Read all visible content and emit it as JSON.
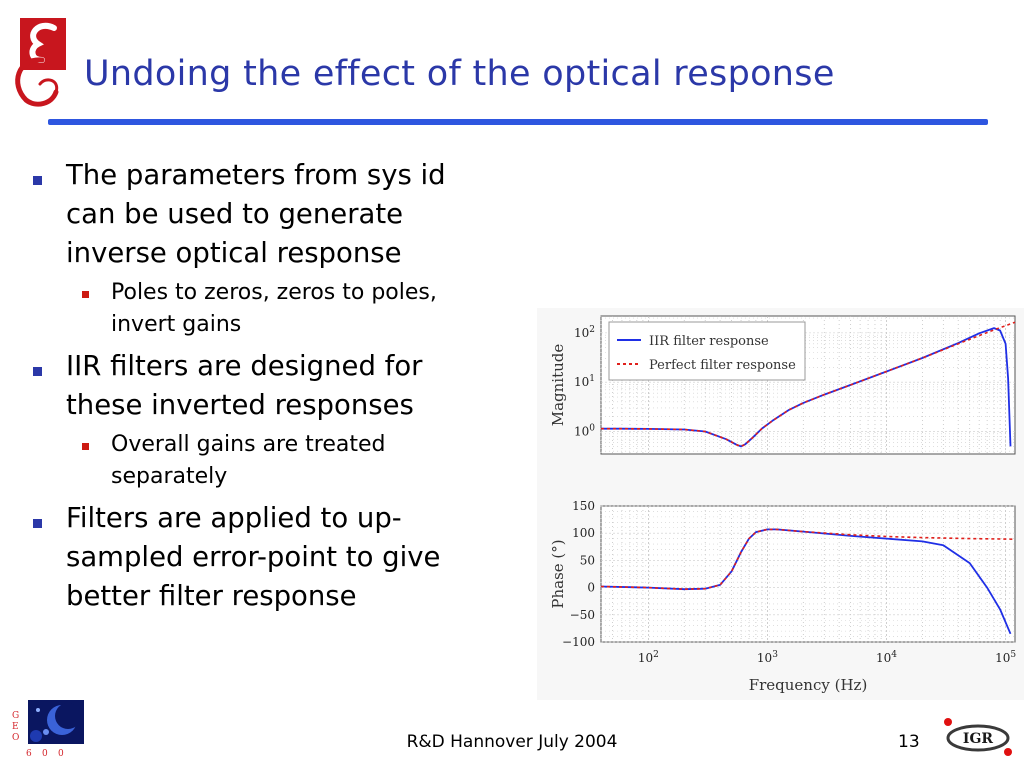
{
  "slide": {
    "title": "Undoing the effect of the optical response",
    "bullets": [
      {
        "lines": [
          "The parameters from sys id",
          "can be used to generate",
          "inverse optical response"
        ],
        "sub": [
          {
            "lines": [
              "Poles to zeros, zeros to poles,",
              "invert gains"
            ]
          }
        ]
      },
      {
        "lines": [
          "IIR filters are designed for",
          "these inverted responses"
        ],
        "sub": [
          {
            "lines": [
              "Overall gains are treated",
              "separately"
            ]
          }
        ]
      },
      {
        "lines": [
          "Filters are applied to up-",
          "sampled error-point to give",
          "better filter response"
        ],
        "sub": []
      }
    ],
    "footer": "R&D Hannover July 2004",
    "page_number": "13",
    "igr_logo_text": "IGR",
    "geo_logo_letters": [
      "G",
      "E",
      "O",
      "6",
      "0",
      "0"
    ]
  },
  "colors": {
    "title": "#2b38a8",
    "rule": "#2e56e0",
    "bullet": "#2b38a8",
    "sub_bullet": "#cc1a12",
    "iir": "#1f2fe6",
    "perfect": "#e0201c"
  },
  "chart_data": [
    {
      "type": "line",
      "ylabel": "Magnitude",
      "yscale": "log",
      "ytick_labels": [
        "10^0",
        "10^1",
        "10^2"
      ],
      "yticks": [
        1,
        10,
        100
      ],
      "xscale": "log",
      "xlim": [
        40,
        120000
      ],
      "ylim": [
        0.35,
        220
      ],
      "grid": true,
      "legend": {
        "position": "top-left",
        "entries": [
          "IIR filter response",
          "Perfect filter response"
        ]
      },
      "series": [
        {
          "name": "IIR filter response",
          "style": "solid",
          "x": [
            40,
            60,
            100,
            200,
            300,
            450,
            550,
            600,
            650,
            750,
            900,
            1100,
            1500,
            2000,
            3000,
            5000,
            10000,
            20000,
            40000,
            60000,
            80000,
            90000,
            100000,
            105000,
            110000
          ],
          "y": [
            1.14,
            1.14,
            1.13,
            1.1,
            1.0,
            0.7,
            0.54,
            0.5,
            0.55,
            0.75,
            1.15,
            1.65,
            2.7,
            3.8,
            5.6,
            8.8,
            16.5,
            31,
            62,
            98,
            125,
            112,
            60,
            12,
            0.5
          ]
        },
        {
          "name": "Perfect filter response",
          "style": "dotted",
          "x": [
            40,
            60,
            100,
            200,
            300,
            450,
            550,
            600,
            650,
            750,
            900,
            1100,
            1500,
            2000,
            3000,
            5000,
            10000,
            20000,
            40000,
            60000,
            80000,
            100000,
            120000
          ],
          "y": [
            1.14,
            1.14,
            1.13,
            1.1,
            1.0,
            0.7,
            0.54,
            0.5,
            0.55,
            0.75,
            1.15,
            1.65,
            2.7,
            3.8,
            5.6,
            8.8,
            16.5,
            31,
            60,
            88,
            115,
            140,
            165
          ]
        }
      ]
    },
    {
      "type": "line",
      "xlabel": "Frequency (Hz)",
      "ylabel": "Phase (°)",
      "xscale": "log",
      "xlim": [
        40,
        120000
      ],
      "ylim": [
        -100,
        150
      ],
      "yticks": [
        -100,
        -50,
        0,
        50,
        100,
        150
      ],
      "ytick_labels": [
        "−100",
        "−50",
        "0",
        "50",
        "100",
        "150"
      ],
      "xticks": [
        100,
        1000,
        10000,
        100000
      ],
      "xtick_labels": [
        "10^2",
        "10^3",
        "10^4",
        "10^5"
      ],
      "grid": true,
      "series": [
        {
          "name": "IIR filter response",
          "style": "solid",
          "x": [
            40,
            100,
            200,
            300,
            400,
            500,
            600,
            700,
            800,
            1000,
            1200,
            2000,
            5000,
            10000,
            20000,
            30000,
            50000,
            70000,
            90000,
            110000
          ],
          "y": [
            2,
            0,
            -3,
            -2,
            5,
            30,
            65,
            90,
            102,
            107,
            107,
            103,
            95,
            90,
            85,
            78,
            45,
            0,
            -40,
            -85
          ]
        },
        {
          "name": "Perfect filter response",
          "style": "dotted",
          "x": [
            40,
            100,
            200,
            300,
            400,
            500,
            600,
            700,
            800,
            1000,
            1200,
            2000,
            5000,
            10000,
            20000,
            50000,
            120000
          ],
          "y": [
            2,
            0,
            -3,
            -2,
            5,
            30,
            65,
            90,
            102,
            107,
            107,
            103,
            97,
            94,
            92,
            90,
            89
          ]
        }
      ]
    }
  ]
}
